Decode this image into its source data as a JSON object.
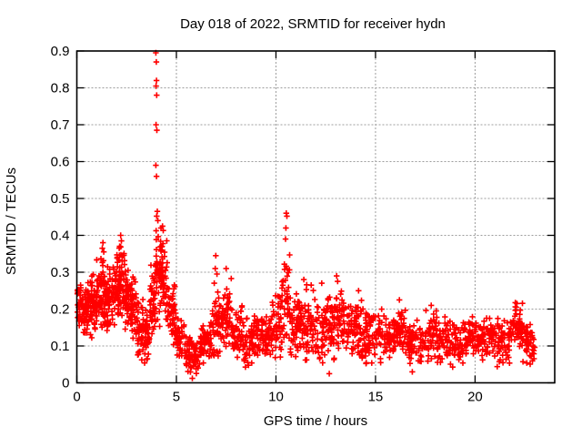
{
  "chart_data": {
    "type": "scatter",
    "title": "Day 018 of 2022, SRMTID for receiver hydn",
    "xlabel": "GPS time / hours",
    "ylabel": "SRMTID / TECUs",
    "xlim": [
      0,
      24
    ],
    "ylim": [
      0,
      0.9
    ],
    "xticks": [
      0,
      5,
      10,
      15,
      20
    ],
    "xtick_labels": [
      "0",
      "5",
      "10",
      "15",
      "20"
    ],
    "yticks": [
      0,
      0.1,
      0.2,
      0.3,
      0.4,
      0.5,
      0.6,
      0.7,
      0.8,
      0.9
    ],
    "ytick_labels": [
      "0",
      "0.1",
      "0.2",
      "0.3",
      "0.4",
      "0.5",
      "0.6",
      "0.7",
      "0.8",
      "0.9"
    ],
    "grid": true,
    "grid_color": "#9c9c9c",
    "marker": "plus",
    "marker_color": "#ff0000",
    "marker_size_px": 7,
    "border_color": "#000000",
    "background_color": "#ffffff",
    "legend": "none",
    "data_time_range_hours": [
      0.02,
      23.0
    ],
    "outlier_points": [
      [
        3.97,
        0.895
      ],
      [
        3.99,
        0.87
      ],
      [
        4.0,
        0.82
      ],
      [
        3.98,
        0.805
      ],
      [
        4.01,
        0.78
      ],
      [
        3.98,
        0.7
      ],
      [
        4.02,
        0.685
      ],
      [
        3.97,
        0.59
      ],
      [
        4.0,
        0.56
      ],
      [
        4.04,
        0.465
      ],
      [
        4.01,
        0.452
      ],
      [
        4.07,
        0.44
      ],
      [
        4.3,
        0.425
      ],
      [
        4.34,
        0.413
      ],
      [
        10.52,
        0.46
      ],
      [
        10.55,
        0.452
      ],
      [
        10.5,
        0.42
      ],
      [
        10.48,
        0.39
      ],
      [
        6.98,
        0.345
      ],
      [
        6.95,
        0.31
      ],
      [
        7.04,
        0.295
      ],
      [
        6.9,
        0.27
      ],
      [
        7.5,
        0.31
      ],
      [
        1.31,
        0.38
      ],
      [
        1.28,
        0.365
      ],
      [
        1.35,
        0.355
      ],
      [
        2.2,
        0.4
      ],
      [
        2.24,
        0.385
      ],
      [
        2.15,
        0.37
      ],
      [
        11.4,
        0.28
      ],
      [
        11.77,
        0.265
      ],
      [
        12.3,
        0.27
      ],
      [
        13.05,
        0.29
      ],
      [
        13.1,
        0.275
      ],
      [
        14.15,
        0.25
      ],
      [
        16.2,
        0.225
      ],
      [
        17.8,
        0.21
      ],
      [
        18.05,
        0.195
      ],
      [
        22.1,
        0.215
      ],
      [
        22.07,
        0.205
      ],
      [
        5.8,
        0.012
      ],
      [
        12.68,
        0.025
      ],
      [
        16.85,
        0.03
      ]
    ],
    "bands_format": "[t_start_hours, t_end_hours, n_points, value_min_TECU, value_max_TECU]",
    "bands": [
      [
        0.02,
        0.3,
        40,
        0.13,
        0.27
      ],
      [
        0.3,
        0.7,
        55,
        0.1,
        0.3
      ],
      [
        0.7,
        1.0,
        45,
        0.12,
        0.31
      ],
      [
        1.0,
        1.4,
        60,
        0.14,
        0.36
      ],
      [
        1.4,
        1.8,
        55,
        0.12,
        0.33
      ],
      [
        1.8,
        2.1,
        45,
        0.15,
        0.35
      ],
      [
        2.1,
        2.4,
        45,
        0.16,
        0.4
      ],
      [
        2.4,
        2.7,
        45,
        0.14,
        0.33
      ],
      [
        2.7,
        3.0,
        40,
        0.1,
        0.3
      ],
      [
        3.0,
        3.35,
        40,
        0.05,
        0.25
      ],
      [
        3.35,
        3.65,
        35,
        0.03,
        0.2
      ],
      [
        3.65,
        3.95,
        40,
        0.1,
        0.33
      ],
      [
        3.95,
        4.25,
        50,
        0.15,
        0.46
      ],
      [
        4.25,
        4.55,
        45,
        0.15,
        0.4
      ],
      [
        4.55,
        5.0,
        50,
        0.1,
        0.28
      ],
      [
        5.0,
        5.4,
        40,
        0.05,
        0.18
      ],
      [
        5.4,
        6.2,
        70,
        0.02,
        0.13
      ],
      [
        6.2,
        6.8,
        55,
        0.04,
        0.17
      ],
      [
        6.8,
        7.2,
        45,
        0.06,
        0.25
      ],
      [
        7.2,
        7.8,
        60,
        0.08,
        0.3
      ],
      [
        7.8,
        8.4,
        55,
        0.05,
        0.22
      ],
      [
        8.4,
        9.2,
        70,
        0.04,
        0.2
      ],
      [
        9.2,
        9.8,
        55,
        0.05,
        0.22
      ],
      [
        9.8,
        10.3,
        45,
        0.06,
        0.25
      ],
      [
        10.3,
        10.7,
        40,
        0.1,
        0.38
      ],
      [
        10.7,
        11.2,
        50,
        0.05,
        0.26
      ],
      [
        11.2,
        12.0,
        70,
        0.05,
        0.27
      ],
      [
        12.0,
        13.0,
        90,
        0.04,
        0.25
      ],
      [
        13.0,
        13.4,
        40,
        0.06,
        0.28
      ],
      [
        13.4,
        14.4,
        80,
        0.04,
        0.24
      ],
      [
        14.4,
        15.4,
        80,
        0.04,
        0.22
      ],
      [
        15.4,
        16.0,
        55,
        0.05,
        0.2
      ],
      [
        16.0,
        16.5,
        45,
        0.06,
        0.22
      ],
      [
        16.5,
        17.5,
        75,
        0.04,
        0.18
      ],
      [
        17.5,
        18.2,
        55,
        0.05,
        0.21
      ],
      [
        18.2,
        19.5,
        95,
        0.04,
        0.18
      ],
      [
        19.5,
        20.2,
        55,
        0.05,
        0.19
      ],
      [
        20.2,
        21.0,
        60,
        0.05,
        0.2
      ],
      [
        21.0,
        21.8,
        60,
        0.04,
        0.18
      ],
      [
        21.8,
        22.4,
        50,
        0.08,
        0.22
      ],
      [
        22.4,
        23.0,
        50,
        0.04,
        0.17
      ]
    ],
    "render_seed": 20220118
  }
}
